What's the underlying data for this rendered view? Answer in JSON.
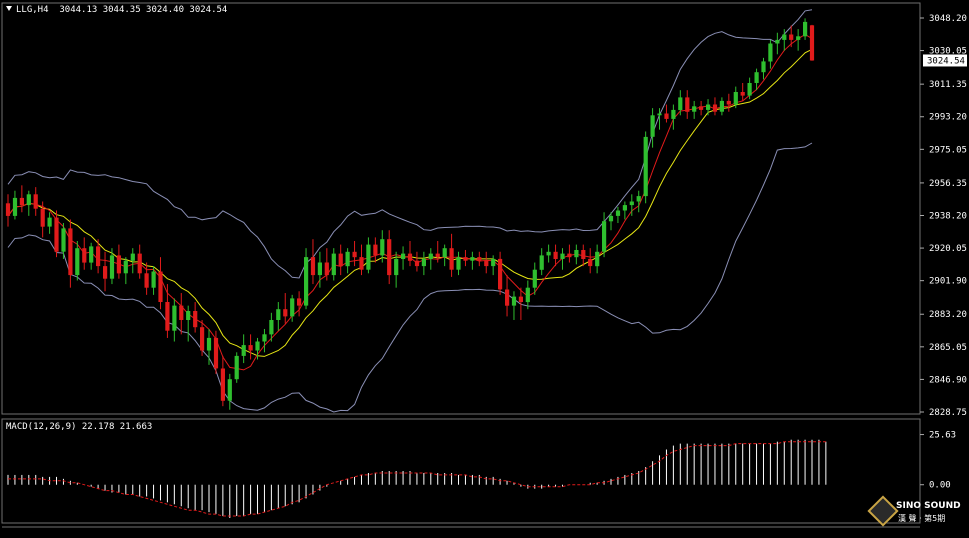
{
  "header": {
    "symbol": "LLG,H4",
    "ohlc": "3044.13 3044.35 3024.40 3024.54"
  },
  "macd_header": "MACD(12,26,9) 22.178 21.663",
  "logo": {
    "name": "SINO SOUND",
    "sub": "漢 聲 · 第5期"
  },
  "colors": {
    "background": "#000000",
    "bull": "#2fbf2f",
    "bear": "#e11b1b",
    "bands": "#8a8fb5",
    "fast_ma": "#e11b1b",
    "slow_ma": "#e5e514",
    "macd_hist": "#ffffff",
    "macd_signal": "#e11b1b",
    "axis_text": "#ffffff"
  },
  "chart_data": [
    {
      "type": "candlestick",
      "title": "LLG,H4",
      "ylim": [
        2828.75,
        3048.2
      ],
      "y_ticks": [
        "3048.20",
        "3030.05",
        "3011.35",
        "2993.20",
        "2975.05",
        "2956.35",
        "2938.20",
        "2920.05",
        "2901.90",
        "2883.20",
        "2865.05",
        "2846.90",
        "2828.75"
      ],
      "last_price": "3024.54",
      "grid": false,
      "series": [
        {
          "name": "",
          "kind": "ohlc",
          "values": [
            [
              2945,
              2950,
              2932,
              2938
            ],
            [
              2938,
              2952,
              2936,
              2948
            ],
            [
              2948,
              2955,
              2940,
              2944
            ],
            [
              2944,
              2952,
              2938,
              2950
            ],
            [
              2950,
              2954,
              2938,
              2942
            ],
            [
              2942,
              2946,
              2926,
              2932
            ],
            [
              2932,
              2940,
              2928,
              2937
            ],
            [
              2937,
              2941,
              2915,
              2918
            ],
            [
              2918,
              2934,
              2914,
              2931
            ],
            [
              2931,
              2936,
              2898,
              2905
            ],
            [
              2905,
              2924,
              2902,
              2920
            ],
            [
              2920,
              2926,
              2908,
              2912
            ],
            [
              2912,
              2923,
              2908,
              2921
            ],
            [
              2921,
              2925,
              2906,
              2910
            ],
            [
              2910,
              2918,
              2896,
              2903
            ],
            [
              2903,
              2920,
              2900,
              2916
            ],
            [
              2916,
              2922,
              2903,
              2906
            ],
            [
              2906,
              2915,
              2900,
              2913
            ],
            [
              2913,
              2920,
              2906,
              2917
            ],
            [
              2917,
              2922,
              2903,
              2906
            ],
            [
              2906,
              2912,
              2894,
              2898
            ],
            [
              2898,
              2910,
              2894,
              2907
            ],
            [
              2907,
              2915,
              2886,
              2890
            ],
            [
              2890,
              2900,
              2870,
              2874
            ],
            [
              2874,
              2892,
              2868,
              2888
            ],
            [
              2888,
              2895,
              2872,
              2880
            ],
            [
              2880,
              2888,
              2868,
              2885
            ],
            [
              2885,
              2890,
              2873,
              2876
            ],
            [
              2876,
              2880,
              2860,
              2863
            ],
            [
              2863,
              2875,
              2855,
              2870
            ],
            [
              2870,
              2874,
              2850,
              2853
            ],
            [
              2853,
              2860,
              2832,
              2835
            ],
            [
              2835,
              2850,
              2830,
              2847
            ],
            [
              2847,
              2862,
              2845,
              2860
            ],
            [
              2860,
              2872,
              2856,
              2866
            ],
            [
              2866,
              2872,
              2858,
              2863
            ],
            [
              2863,
              2870,
              2858,
              2868
            ],
            [
              2868,
              2875,
              2862,
              2872
            ],
            [
              2872,
              2884,
              2868,
              2880
            ],
            [
              2880,
              2890,
              2874,
              2886
            ],
            [
              2886,
              2895,
              2878,
              2882
            ],
            [
              2882,
              2894,
              2879,
              2892
            ],
            [
              2892,
              2896,
              2882,
              2888
            ],
            [
              2888,
              2920,
              2886,
              2915
            ],
            [
              2915,
              2925,
              2900,
              2905
            ],
            [
              2905,
              2918,
              2898,
              2912
            ],
            [
              2912,
              2920,
              2902,
              2905
            ],
            [
              2905,
              2920,
              2902,
              2917
            ],
            [
              2917,
              2922,
              2905,
              2910
            ],
            [
              2910,
              2920,
              2906,
              2918
            ],
            [
              2918,
              2924,
              2910,
              2915
            ],
            [
              2915,
              2922,
              2905,
              2908
            ],
            [
              2908,
              2926,
              2906,
              2922
            ],
            [
              2922,
              2926,
              2912,
              2916
            ],
            [
              2916,
              2930,
              2912,
              2925
            ],
            [
              2925,
              2930,
              2900,
              2905
            ],
            [
              2905,
              2918,
              2898,
              2914
            ],
            [
              2914,
              2921,
              2908,
              2917
            ],
            [
              2917,
              2924,
              2910,
              2913
            ],
            [
              2913,
              2918,
              2907,
              2910
            ],
            [
              2910,
              2918,
              2905,
              2914
            ],
            [
              2914,
              2920,
              2908,
              2917
            ],
            [
              2917,
              2924,
              2912,
              2915
            ],
            [
              2915,
              2922,
              2910,
              2920
            ],
            [
              2920,
              2928,
              2904,
              2908
            ],
            [
              2908,
              2918,
              2905,
              2915
            ],
            [
              2915,
              2919,
              2910,
              2913
            ],
            [
              2913,
              2918,
              2908,
              2915
            ],
            [
              2915,
              2918,
              2910,
              2913
            ],
            [
              2913,
              2918,
              2906,
              2910
            ],
            [
              2910,
              2916,
              2905,
              2914
            ],
            [
              2914,
              2918,
              2894,
              2897
            ],
            [
              2897,
              2905,
              2882,
              2888
            ],
            [
              2888,
              2896,
              2880,
              2893
            ],
            [
              2893,
              2898,
              2880,
              2890
            ],
            [
              2890,
              2902,
              2886,
              2898
            ],
            [
              2898,
              2912,
              2894,
              2908
            ],
            [
              2908,
              2920,
              2905,
              2916
            ],
            [
              2916,
              2922,
              2912,
              2918
            ],
            [
              2918,
              2922,
              2910,
              2914
            ],
            [
              2914,
              2920,
              2908,
              2917
            ],
            [
              2917,
              2922,
              2912,
              2915
            ],
            [
              2915,
              2922,
              2911,
              2919
            ],
            [
              2919,
              2922,
              2910,
              2914
            ],
            [
              2914,
              2920,
              2906,
              2910
            ],
            [
              2910,
              2922,
              2906,
              2918
            ],
            [
              2918,
              2940,
              2915,
              2935
            ],
            [
              2935,
              2940,
              2930,
              2938
            ],
            [
              2938,
              2943,
              2934,
              2941
            ],
            [
              2941,
              2946,
              2936,
              2944
            ],
            [
              2944,
              2950,
              2938,
              2946
            ],
            [
              2946,
              2952,
              2940,
              2949
            ],
            [
              2949,
              2985,
              2945,
              2982
            ],
            [
              2982,
              2998,
              2976,
              2994
            ],
            [
              2994,
              2998,
              2986,
              2995
            ],
            [
              2995,
              3000,
              2990,
              2992
            ],
            [
              2992,
              3000,
              2986,
              2997
            ],
            [
              2997,
              3008,
              2994,
              3004
            ],
            [
              3004,
              3008,
              2992,
              2996
            ],
            [
              2996,
              3002,
              2992,
              2999
            ],
            [
              2999,
              3002,
              2994,
              2997
            ],
            [
              2997,
              3003,
              2994,
              3000
            ],
            [
              3000,
              3004,
              2994,
              2996
            ],
            [
              2996,
              3004,
              2994,
              3002
            ],
            [
              3002,
              3006,
              2996,
              3000
            ],
            [
              3000,
              3010,
              2998,
              3007
            ],
            [
              3007,
              3012,
              3002,
              3005
            ],
            [
              3005,
              3015,
              3003,
              3012
            ],
            [
              3012,
              3020,
              3008,
              3018
            ],
            [
              3018,
              3026,
              3014,
              3024
            ],
            [
              3024,
              3036,
              3020,
              3034
            ],
            [
              3034,
              3040,
              3028,
              3036
            ],
            [
              3036,
              3042,
              3030,
              3039
            ],
            [
              3039,
              3044,
              3032,
              3036
            ],
            [
              3036,
              3042,
              3030,
              3038
            ],
            [
              3038,
              3048,
              3036,
              3046
            ],
            [
              3044.13,
              3044.35,
              3024.4,
              3024.54
            ]
          ]
        }
      ]
    },
    {
      "type": "bar",
      "title": "MACD(12,26,9) 22.178 21.663",
      "ylim": [
        -17,
        30
      ],
      "y_ticks": [
        "25.63",
        "0.00"
      ],
      "series": [
        {
          "name": "",
          "values": [
            5,
            5,
            5,
            5,
            5,
            4,
            4,
            4,
            3,
            2,
            1,
            0,
            -1,
            -2,
            -3,
            -4,
            -4,
            -5,
            -5,
            -6,
            -6,
            -7,
            -8,
            -9,
            -10,
            -11,
            -12,
            -13,
            -13,
            -14,
            -15,
            -16,
            -17,
            -16,
            -16,
            -15,
            -15,
            -14,
            -13,
            -12,
            -11,
            -10,
            -9,
            -7,
            -5,
            -3,
            -1,
            0,
            2,
            3,
            4,
            5,
            6,
            6,
            7,
            7,
            7,
            7,
            7,
            6,
            6,
            6,
            6,
            6,
            6,
            5,
            5,
            5,
            5,
            4,
            4,
            3,
            2,
            1,
            -1,
            -2,
            -2,
            -2,
            -1,
            -1,
            -1,
            0,
            0,
            0,
            1,
            1,
            2,
            3,
            4,
            5,
            6,
            7,
            9,
            12,
            15,
            18,
            20,
            21,
            21,
            21,
            21,
            21,
            21,
            21,
            21,
            21,
            21,
            21,
            21,
            21,
            21,
            22,
            22,
            23,
            23,
            23,
            23,
            23,
            22
          ]
        },
        {
          "name": "",
          "kind": "line",
          "values": [
            3,
            3,
            3,
            3,
            3,
            3,
            2,
            2,
            2,
            1,
            1,
            0,
            -1,
            -2,
            -3,
            -3,
            -4,
            -5,
            -5,
            -6,
            -7,
            -8,
            -9,
            -10,
            -11,
            -12,
            -13,
            -13,
            -14,
            -15,
            -15,
            -16,
            -16,
            -16,
            -16,
            -15,
            -15,
            -14,
            -13,
            -12,
            -11,
            -9,
            -8,
            -6,
            -4,
            -2,
            0,
            1,
            2,
            3,
            4,
            5,
            5,
            6,
            6,
            6,
            6,
            6,
            6,
            6,
            6,
            6,
            5,
            5,
            5,
            5,
            5,
            4,
            4,
            3,
            3,
            2,
            2,
            1,
            0,
            -1,
            -1,
            -1,
            -1,
            -1,
            -1,
            0,
            0,
            0,
            0,
            1,
            1,
            2,
            3,
            4,
            5,
            6,
            8,
            10,
            12,
            15,
            17,
            18,
            19,
            20,
            20,
            20,
            20,
            20,
            20,
            21,
            21,
            21,
            21,
            21,
            21,
            21,
            22,
            22,
            22,
            22,
            22,
            22,
            22
          ]
        }
      ]
    }
  ]
}
